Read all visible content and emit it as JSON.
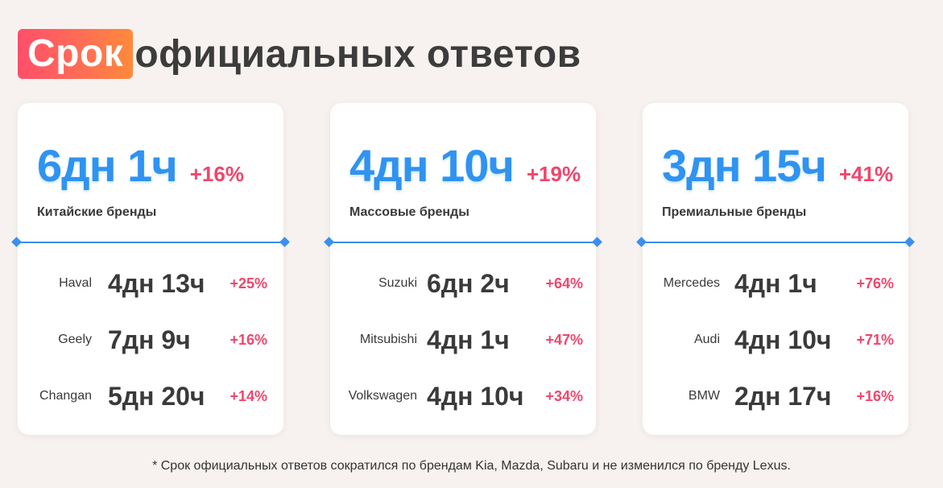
{
  "title": {
    "highlight": "Срок",
    "rest": "официальных ответов"
  },
  "cards": [
    {
      "big": "6дн 1ч",
      "big_pct": "+16%",
      "category": "Китайские бренды",
      "rows": [
        {
          "brand": "Haval",
          "duration": "4дн 13ч",
          "pct": "+25%"
        },
        {
          "brand": "Geely",
          "duration": "7дн 9ч",
          "pct": "+16%"
        },
        {
          "brand": "Changan",
          "duration": "5дн 20ч",
          "pct": "+14%"
        }
      ]
    },
    {
      "big": "4дн 10ч",
      "big_pct": "+19%",
      "category": "Массовые бренды",
      "rows": [
        {
          "brand": "Suzuki",
          "duration": "6дн 2ч",
          "pct": "+64%"
        },
        {
          "brand": "Mitsubishi",
          "duration": "4дн 1ч",
          "pct": "+47%"
        },
        {
          "brand": "Volkswagen",
          "duration": "4дн 10ч",
          "pct": "+34%"
        }
      ]
    },
    {
      "big": "3дн 15ч",
      "big_pct": "+41%",
      "category": "Премиальные бренды",
      "rows": [
        {
          "brand": "Mercedes",
          "duration": "4дн 1ч",
          "pct": "+76%"
        },
        {
          "brand": "Audi",
          "duration": "4дн 10ч",
          "pct": "+71%"
        },
        {
          "brand": "BMW",
          "duration": "2дн 17ч",
          "pct": "+16%"
        }
      ]
    }
  ],
  "footnote": "* Срок официальных ответов сократился по брендам Kia, Mazda, Subaru и не изменился по бренду Lexus.",
  "colors": {
    "accent_blue": "#2f93f0",
    "accent_red": "#f2456b",
    "title_gradient_start": "#ff4f6a",
    "title_gradient_end": "#ff8a3a"
  }
}
